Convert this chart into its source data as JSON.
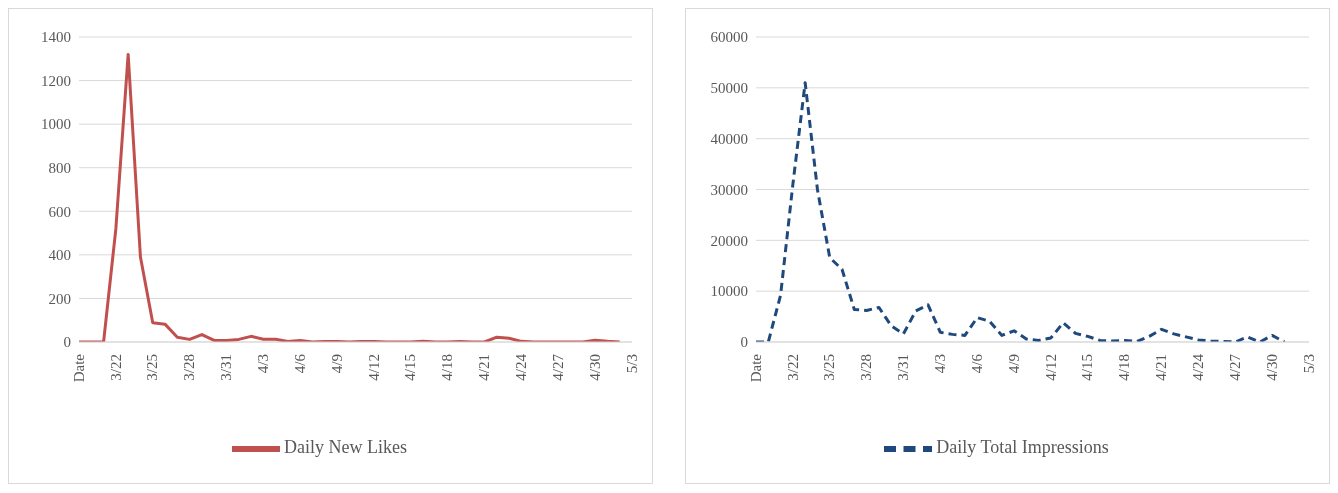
{
  "chart_data": [
    {
      "type": "line",
      "categories": [
        "Date",
        null,
        null,
        "3/22",
        null,
        null,
        "3/25",
        null,
        null,
        "3/28",
        null,
        null,
        "3/31",
        null,
        null,
        "4/3",
        null,
        null,
        "4/6",
        null,
        null,
        "4/9",
        null,
        null,
        "4/12",
        null,
        null,
        "4/15",
        null,
        null,
        "4/18",
        null,
        null,
        "4/21",
        null,
        null,
        "4/24",
        null,
        null,
        "4/27",
        null,
        null,
        "4/30",
        null,
        null,
        "5/3"
      ],
      "series": [
        {
          "name": "Daily New Likes",
          "color": "#c0504d",
          "line_style": "solid",
          "values": [
            0,
            0,
            0,
            520,
            1320,
            390,
            88,
            82,
            22,
            12,
            34,
            7,
            7,
            12,
            26,
            13,
            13,
            2,
            7,
            0,
            2,
            2,
            0,
            2,
            2,
            0,
            0,
            0,
            3,
            0,
            0,
            2,
            0,
            0,
            22,
            17,
            3,
            0,
            0,
            0,
            0,
            0,
            8,
            3,
            0,
            null
          ]
        }
      ],
      "ylim": [
        0,
        1400
      ],
      "yticks": [
        0,
        200,
        400,
        600,
        800,
        1000,
        1200,
        1400
      ],
      "grid": "y",
      "legend": "bottom",
      "marker": "none"
    },
    {
      "type": "line",
      "categories": [
        "Date",
        null,
        null,
        "3/22",
        null,
        null,
        "3/25",
        null,
        null,
        "3/28",
        null,
        null,
        "3/31",
        null,
        null,
        "4/3",
        null,
        null,
        "4/6",
        null,
        null,
        "4/9",
        null,
        null,
        "4/12",
        null,
        null,
        "4/15",
        null,
        null,
        "4/18",
        null,
        null,
        "4/21",
        null,
        null,
        "4/24",
        null,
        null,
        "4/27",
        null,
        null,
        "4/30",
        null,
        null,
        "5/3"
      ],
      "series": [
        {
          "name": "Daily Total Impressions",
          "color": "#1f497d",
          "line_style": "dashed",
          "values": [
            0,
            0,
            9200,
            31000,
            51000,
            30000,
            16600,
            14300,
            6400,
            6200,
            6800,
            3200,
            1600,
            6100,
            7300,
            1900,
            1500,
            1300,
            4800,
            4100,
            1300,
            2200,
            600,
            300,
            800,
            3800,
            1700,
            1100,
            300,
            200,
            300,
            100,
            1100,
            2500,
            1600,
            1000,
            400,
            200,
            100,
            0,
            1000,
            0,
            1300,
            0,
            null,
            null
          ]
        }
      ],
      "ylim": [
        0,
        60000
      ],
      "yticks": [
        0,
        10000,
        20000,
        30000,
        40000,
        50000,
        60000
      ],
      "grid": "y",
      "legend": "bottom",
      "marker": "none"
    }
  ]
}
